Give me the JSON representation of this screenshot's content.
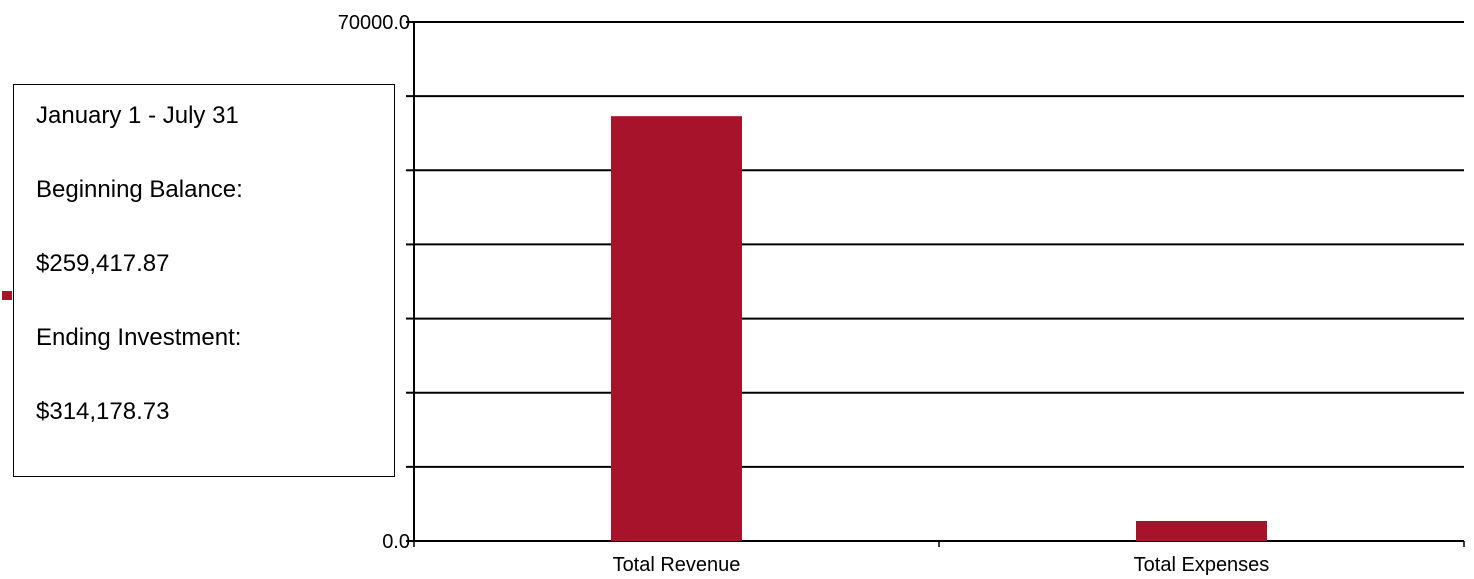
{
  "chart_data": {
    "type": "bar",
    "categories": [
      "Total Revenue",
      "Total Expenses"
    ],
    "series": [
      {
        "values": [
          57300,
          2700
        ],
        "color": "#a8132c"
      }
    ],
    "ylim": [
      0,
      70000
    ],
    "yticks": [
      0,
      10000,
      20000,
      30000,
      40000,
      50000,
      60000,
      70000
    ],
    "ytick_labels_visible": [
      "0.0",
      "70000.0"
    ],
    "grid": true,
    "gridline_color": "#000000"
  },
  "overlay": {
    "lines": [
      "January 1 - July 31",
      "Beginning Balance:",
      "$259,417.87",
      "Ending Investment:",
      "$314,178.73"
    ]
  },
  "legend_marker": {
    "color": "#a8132c"
  }
}
